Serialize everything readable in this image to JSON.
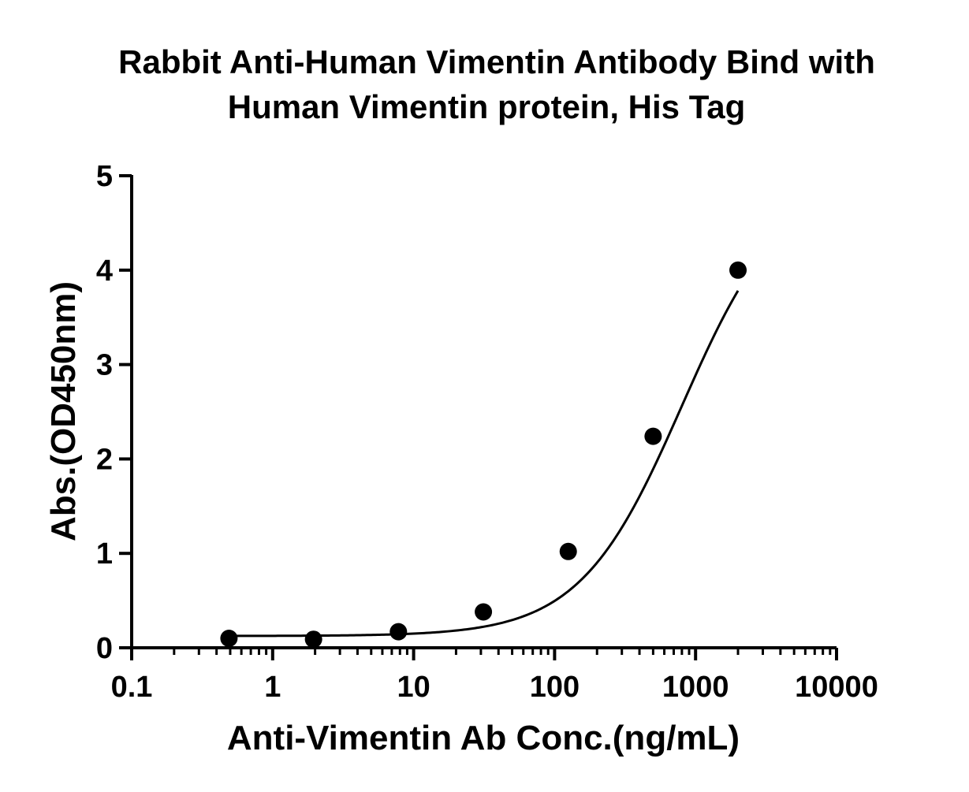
{
  "chart_data": {
    "type": "scatter",
    "title_line1": "Rabbit Anti-Human Vimentin Antibody Bind with",
    "title_line2": "Human Vimentin protein, His Tag",
    "xlabel": "Anti-Vimentin Ab Conc.(ng/mL)",
    "ylabel": "Abs.(OD450nm)",
    "x_scale": "log",
    "xlim": [
      0.1,
      10000
    ],
    "ylim": [
      0,
      5
    ],
    "x_ticks": [
      0.1,
      1,
      10,
      100,
      1000,
      10000
    ],
    "x_tick_labels": [
      "0.1",
      "1",
      "10",
      "100",
      "1000",
      "10000"
    ],
    "y_ticks": [
      0,
      1,
      2,
      3,
      4,
      5
    ],
    "y_tick_labels": [
      "0",
      "1",
      "2",
      "3",
      "4",
      "5"
    ],
    "grid": false,
    "legend": "none",
    "series": [
      {
        "x": [
          0.49,
          1.95,
          7.8,
          31.25,
          125,
          500,
          2000
        ],
        "y": [
          0.1,
          0.09,
          0.17,
          0.38,
          1.02,
          2.24,
          4.0
        ],
        "marker": "circle",
        "fit": "4PL"
      }
    ],
    "fit_curve": {
      "bottom": 0.125,
      "top": 5.0,
      "ec50": 800,
      "hill": 1.2,
      "x_from": 0.49,
      "x_to": 2000
    },
    "color": "#000000"
  }
}
